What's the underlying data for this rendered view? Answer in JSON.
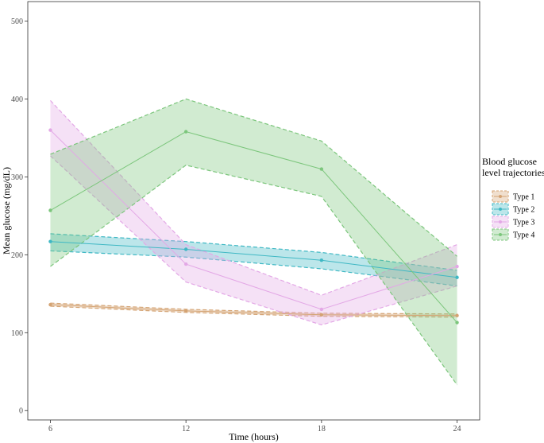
{
  "chart_data": {
    "type": "line",
    "xlabel": "Time (hours)",
    "ylabel": "Mean glucose (mg/dL)",
    "x": [
      6,
      12,
      18,
      24
    ],
    "x_ticks": [
      "6",
      "12",
      "18",
      "24"
    ],
    "y_ticks": [
      "0",
      "100",
      "200",
      "300",
      "400",
      "500"
    ],
    "xlim": [
      5,
      25
    ],
    "ylim": [
      -12,
      525
    ],
    "grid": false,
    "legend": {
      "title_lines": [
        "Blood glucose",
        "level trajectories"
      ],
      "placement": "right"
    },
    "series": [
      {
        "name": "Type 1",
        "color": "#d4a373",
        "values": [
          136,
          128,
          123,
          122
        ],
        "lower": [
          134,
          126,
          121,
          120
        ],
        "upper": [
          138,
          130,
          125,
          124
        ]
      },
      {
        "name": "Type 2",
        "color": "#3fb8c4",
        "values": [
          217,
          207,
          193,
          171
        ],
        "lower": [
          205,
          197,
          182,
          160
        ],
        "upper": [
          227,
          217,
          203,
          180
        ]
      },
      {
        "name": "Type 3",
        "color": "#e3a8e6",
        "values": [
          360,
          188,
          130,
          185
        ],
        "lower": [
          327,
          165,
          110,
          160
        ],
        "upper": [
          398,
          213,
          148,
          213
        ]
      },
      {
        "name": "Type 4",
        "color": "#7cc67c",
        "values": [
          257,
          358,
          310,
          113
        ],
        "lower": [
          185,
          315,
          275,
          33
        ],
        "upper": [
          329,
          400,
          346,
          198
        ]
      }
    ]
  }
}
